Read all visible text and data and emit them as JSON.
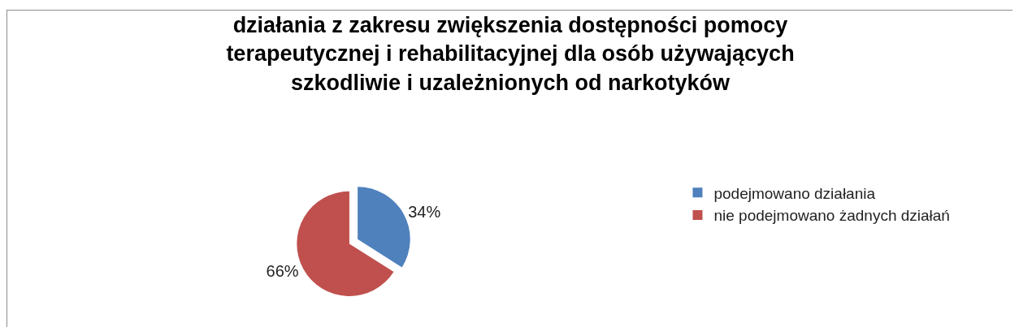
{
  "chart_data": {
    "type": "pie",
    "title": "działania z zakresu zwiększenia dostępności pomocy\nterapeutycznej i rehabilitacyjnej dla osób używających\nszkodliwie i uzależnionych od narkotyków",
    "categories": [
      "podejmowano działania",
      "nie podejmowano żadnych działań"
    ],
    "values": [
      34,
      66
    ],
    "colors": [
      "#4f81bd",
      "#c0504d"
    ],
    "value_labels": [
      "34%",
      "66%"
    ],
    "legend": "right"
  }
}
